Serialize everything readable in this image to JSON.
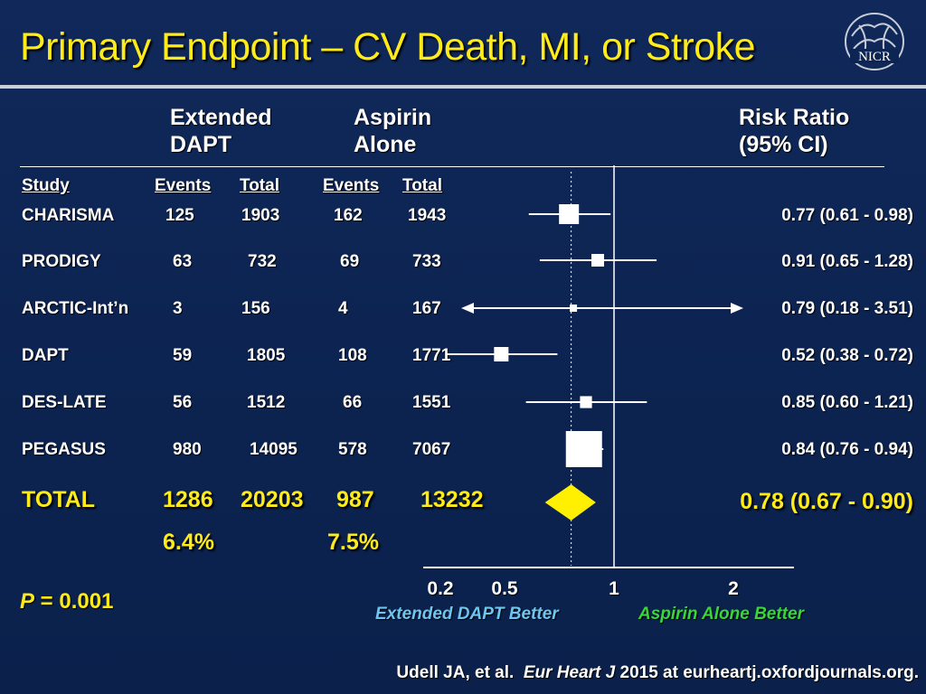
{
  "title": "Primary Endpoint – CV Death, MI, or Stroke",
  "logo_text": "NICR",
  "header": {
    "extended": [
      "Extended",
      "DAPT"
    ],
    "aspirin": [
      "Aspirin",
      "Alone"
    ],
    "risk": [
      "Risk Ratio",
      "(95% CI)"
    ]
  },
  "columns": {
    "study": "Study",
    "events1": "Events",
    "total1": "Total",
    "events2": "Events",
    "total2": "Total"
  },
  "rows": [
    {
      "study": "CHARISMA",
      "events1": "125",
      "total1": "1903",
      "events2": "162",
      "total2": "1943",
      "rr_text": "0.77 (0.61 - 0.98)"
    },
    {
      "study": "PRODIGY",
      "events1": "63",
      "total1": "732",
      "events2": "69",
      "total2": "733",
      "rr_text": "0.91 (0.65 - 1.28)"
    },
    {
      "study": "ARCTIC-Int’n",
      "events1": "3",
      "total1": "156",
      "events2": "4",
      "total2": "167",
      "rr_text": "0.79 (0.18 - 3.51)"
    },
    {
      "study": "DAPT",
      "events1": "59",
      "total1": "1805",
      "events2": "108",
      "total2": "1771",
      "rr_text": "0.52 (0.38 - 0.72)"
    },
    {
      "study": "DES-LATE",
      "events1": "56",
      "total1": "1512",
      "events2": "66",
      "total2": "1551",
      "rr_text": "0.85 (0.60 - 1.21)"
    },
    {
      "study": "PEGASUS",
      "events1": "980",
      "total1": "14095",
      "events2": "578",
      "total2": "7067",
      "rr_text": "0.84 (0.76 - 0.94)"
    }
  ],
  "total": {
    "label": "TOTAL",
    "events1": "1286",
    "total1": "20203",
    "events2": "987",
    "total2": "13232",
    "pct1": "6.4%",
    "pct2": "7.5%",
    "rr_text": "0.78 (0.67 - 0.90)"
  },
  "p_value": {
    "label": "P",
    "text": " = 0.001"
  },
  "axis_ticks": [
    "0.2",
    "0.5",
    "1",
    "2"
  ],
  "favor_left": "Extended DAPT Better",
  "favor_right": "Aspirin Alone Better",
  "citation": {
    "authors": "Udell JA, et al.",
    "journal": "Eur Heart J",
    "rest": "2015 at eurheartj.oxfordjournals.org."
  },
  "colors": {
    "title": "#ffeb1a",
    "background": "#0d2552",
    "total": "#ffeb1a",
    "favor_left": "#6ec6f0",
    "favor_right": "#39d639"
  },
  "chart_data": {
    "type": "forest",
    "scale": "log",
    "xlim": [
      0.2,
      2
    ],
    "reference_line": 1,
    "pooled_dotted_line": 0.78,
    "studies": [
      {
        "name": "CHARISMA",
        "rr": 0.77,
        "lo": 0.61,
        "hi": 0.98,
        "weight": 0.55
      },
      {
        "name": "PRODIGY",
        "rr": 0.91,
        "lo": 0.65,
        "hi": 1.28,
        "weight": 0.35
      },
      {
        "name": "ARCTIC-Int’n",
        "rr": 0.79,
        "lo": 0.18,
        "hi": 3.51,
        "weight": 0.2,
        "arrows": true
      },
      {
        "name": "DAPT",
        "rr": 0.52,
        "lo": 0.38,
        "hi": 0.72,
        "weight": 0.4
      },
      {
        "name": "DES-LATE",
        "rr": 0.85,
        "lo": 0.6,
        "hi": 1.21,
        "weight": 0.33
      },
      {
        "name": "PEGASUS",
        "rr": 0.84,
        "lo": 0.76,
        "hi": 0.94,
        "weight": 1.0
      }
    ],
    "pooled": {
      "name": "TOTAL",
      "rr": 0.78,
      "lo": 0.67,
      "hi": 0.9
    }
  }
}
